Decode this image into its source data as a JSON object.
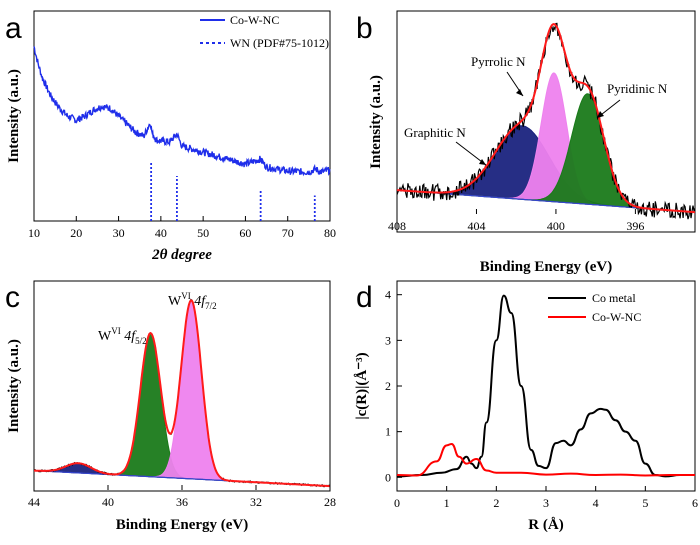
{
  "panels": {
    "a": {
      "letter": "a"
    },
    "b": {
      "letter": "b"
    },
    "c": {
      "letter": "c"
    },
    "d": {
      "letter": "d"
    }
  },
  "chart_data": [
    {
      "id": "a",
      "type": "line",
      "xlabel": "2θ degree",
      "ylabel": "Intensity (a.u.)",
      "xlim": [
        10,
        80
      ],
      "xticks": [
        10,
        20,
        30,
        40,
        50,
        60,
        70,
        80
      ],
      "legend": [
        {
          "name": "Co-W-NC",
          "style": "solid",
          "color": "#1f2eea"
        },
        {
          "name": "WN (PDF#75-1012)",
          "style": "dashed",
          "color": "#1f2eea"
        }
      ],
      "series": [
        {
          "name": "Co-W-NC",
          "x": [
            10,
            11,
            12,
            14,
            16,
            18,
            20,
            22,
            24,
            26,
            28,
            30,
            32,
            34,
            36,
            37.5,
            38,
            39,
            42,
            43.8,
            45,
            50,
            55,
            60,
            63.5,
            65,
            70,
            75,
            76.5,
            78,
            80
          ],
          "y": [
            0.75,
            0.66,
            0.59,
            0.5,
            0.44,
            0.4,
            0.38,
            0.4,
            0.43,
            0.45,
            0.44,
            0.4,
            0.36,
            0.32,
            0.3,
            0.37,
            0.31,
            0.28,
            0.27,
            0.31,
            0.25,
            0.22,
            0.19,
            0.16,
            0.185,
            0.145,
            0.125,
            0.12,
            0.135,
            0.12,
            0.13
          ]
        }
      ],
      "reference_lines": {
        "name": "WN (PDF#75-1012)",
        "x": [
          37.7,
          43.8,
          63.6,
          76.4
        ],
        "height": [
          0.4,
          0.3,
          0.2,
          0.17
        ]
      }
    },
    {
      "id": "b",
      "type": "line",
      "xlabel": "Binding Energy (eV)",
      "ylabel": "Intensity (a.u.)",
      "xlim": [
        408,
        393
      ],
      "xticks": [
        408,
        404,
        400,
        396
      ],
      "annotations": [
        {
          "text": "Pyrrolic N",
          "color": "#e040e0"
        },
        {
          "text": "Pyridinic N",
          "color": "#1a7a1a"
        },
        {
          "text": "Graphitic N",
          "color": "#1a237e"
        }
      ],
      "peaks": [
        {
          "name": "Graphitic N",
          "center": 401.7,
          "height": 0.4,
          "fwhm": 3.2,
          "color": "#1a237e"
        },
        {
          "name": "Pyrrolic N",
          "center": 400.1,
          "height": 0.7,
          "fwhm": 1.5,
          "color": "#ee82ee"
        },
        {
          "name": "Pyridinic N",
          "center": 398.4,
          "height": 0.6,
          "fwhm": 1.9,
          "color": "#1a7a1a"
        }
      ],
      "baseline": [
        [
          408,
          0.13
        ],
        [
          393,
          0.01
        ]
      ]
    },
    {
      "id": "c",
      "type": "line",
      "xlabel": "Binding Energy (eV)",
      "ylabel": "Intensity (a.u.)",
      "xlim": [
        44,
        28
      ],
      "xticks": [
        44,
        40,
        36,
        32,
        28
      ],
      "annotations": [
        {
          "text": "W",
          "sup": "VI",
          "rest": " 4f",
          "sub": "5/2",
          "color": "#1a7a1a"
        },
        {
          "text": "W",
          "sup": "VI",
          "rest": " 4f",
          "sub": "7/2",
          "color": "#e040e0"
        }
      ],
      "peaks": [
        {
          "name": "W 4f5/2",
          "center": 37.7,
          "height": 0.74,
          "fwhm": 1.3,
          "color": "#1a7a1a"
        },
        {
          "name": "W 4f7/2",
          "center": 35.5,
          "height": 0.92,
          "fwhm": 1.3,
          "color": "#ee82ee"
        },
        {
          "name": "minor",
          "center": 41.6,
          "height": 0.05,
          "fwhm": 1.6,
          "color": "#1a237e"
        }
      ],
      "baseline": [
        [
          44,
          0.1
        ],
        [
          28,
          0.02
        ]
      ]
    },
    {
      "id": "d",
      "type": "line",
      "xlabel": "R (Å)",
      "ylabel": "|c(R)|(Å⁻³)",
      "xlim": [
        0,
        6
      ],
      "ylim": [
        -0.3,
        4.3
      ],
      "xticks": [
        0,
        1,
        2,
        3,
        4,
        5,
        6
      ],
      "yticks": [
        0,
        1,
        2,
        3,
        4
      ],
      "legend": [
        {
          "name": "Co metal",
          "color": "#000000"
        },
        {
          "name": "Co-W-NC",
          "color": "#ff0000"
        }
      ],
      "series": [
        {
          "name": "Co metal",
          "color": "#000000",
          "x": [
            0,
            0.5,
            0.9,
            1.2,
            1.4,
            1.5,
            1.6,
            1.7,
            1.8,
            2.0,
            2.15,
            2.3,
            2.5,
            2.7,
            2.85,
            3.0,
            3.2,
            3.35,
            3.5,
            3.7,
            3.9,
            4.1,
            4.2,
            4.4,
            4.6,
            4.8,
            5.0,
            5.2,
            5.4,
            5.7,
            6.0
          ],
          "y": [
            0.02,
            0.05,
            0.1,
            0.18,
            0.45,
            0.3,
            0.2,
            0.45,
            1.2,
            3.0,
            3.98,
            3.6,
            2.0,
            0.6,
            0.25,
            0.2,
            0.75,
            0.8,
            0.7,
            1.05,
            1.4,
            1.5,
            1.48,
            1.25,
            1.0,
            0.8,
            0.3,
            0.05,
            0.02,
            0.05,
            0.05
          ]
        },
        {
          "name": "Co-W-NC",
          "color": "#ff0000",
          "x": [
            0,
            0.4,
            0.8,
            1.0,
            1.1,
            1.25,
            1.4,
            1.6,
            1.8,
            2.0,
            2.5,
            3.0,
            3.5,
            4.0,
            4.5,
            5.0,
            5.5,
            6.0
          ],
          "y": [
            0.05,
            0.04,
            0.35,
            0.7,
            0.73,
            0.45,
            0.3,
            0.4,
            0.15,
            0.1,
            0.1,
            0.06,
            0.08,
            0.05,
            0.06,
            0.04,
            0.05,
            0.05
          ]
        }
      ]
    }
  ]
}
